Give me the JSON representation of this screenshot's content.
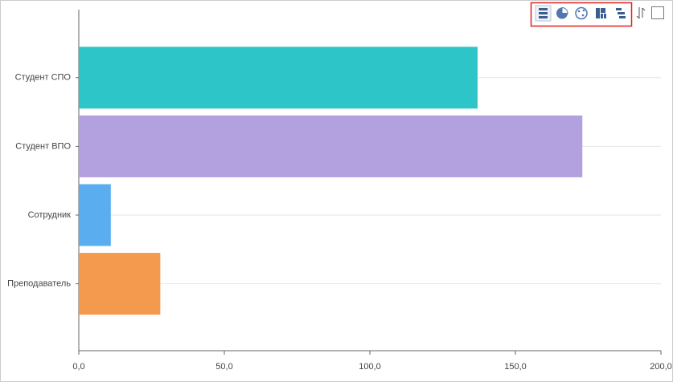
{
  "chart_data": {
    "type": "bar",
    "orientation": "horizontal",
    "categories": [
      "Студент СПО",
      "Студент ВПО",
      "Сотрудник",
      "Преподаватель"
    ],
    "values": [
      137,
      173,
      11,
      28
    ],
    "colors": [
      "#2ec5c9",
      "#b3a0df",
      "#5aaeef",
      "#f49a4e"
    ],
    "xlim": [
      0,
      200
    ],
    "xticks": [
      {
        "value": 0,
        "label": "0,0"
      },
      {
        "value": 50,
        "label": "50,0"
      },
      {
        "value": 100,
        "label": "100,0"
      },
      {
        "value": 150,
        "label": "150,0"
      },
      {
        "value": 200,
        "label": "200,0"
      }
    ],
    "grid": true
  }
}
